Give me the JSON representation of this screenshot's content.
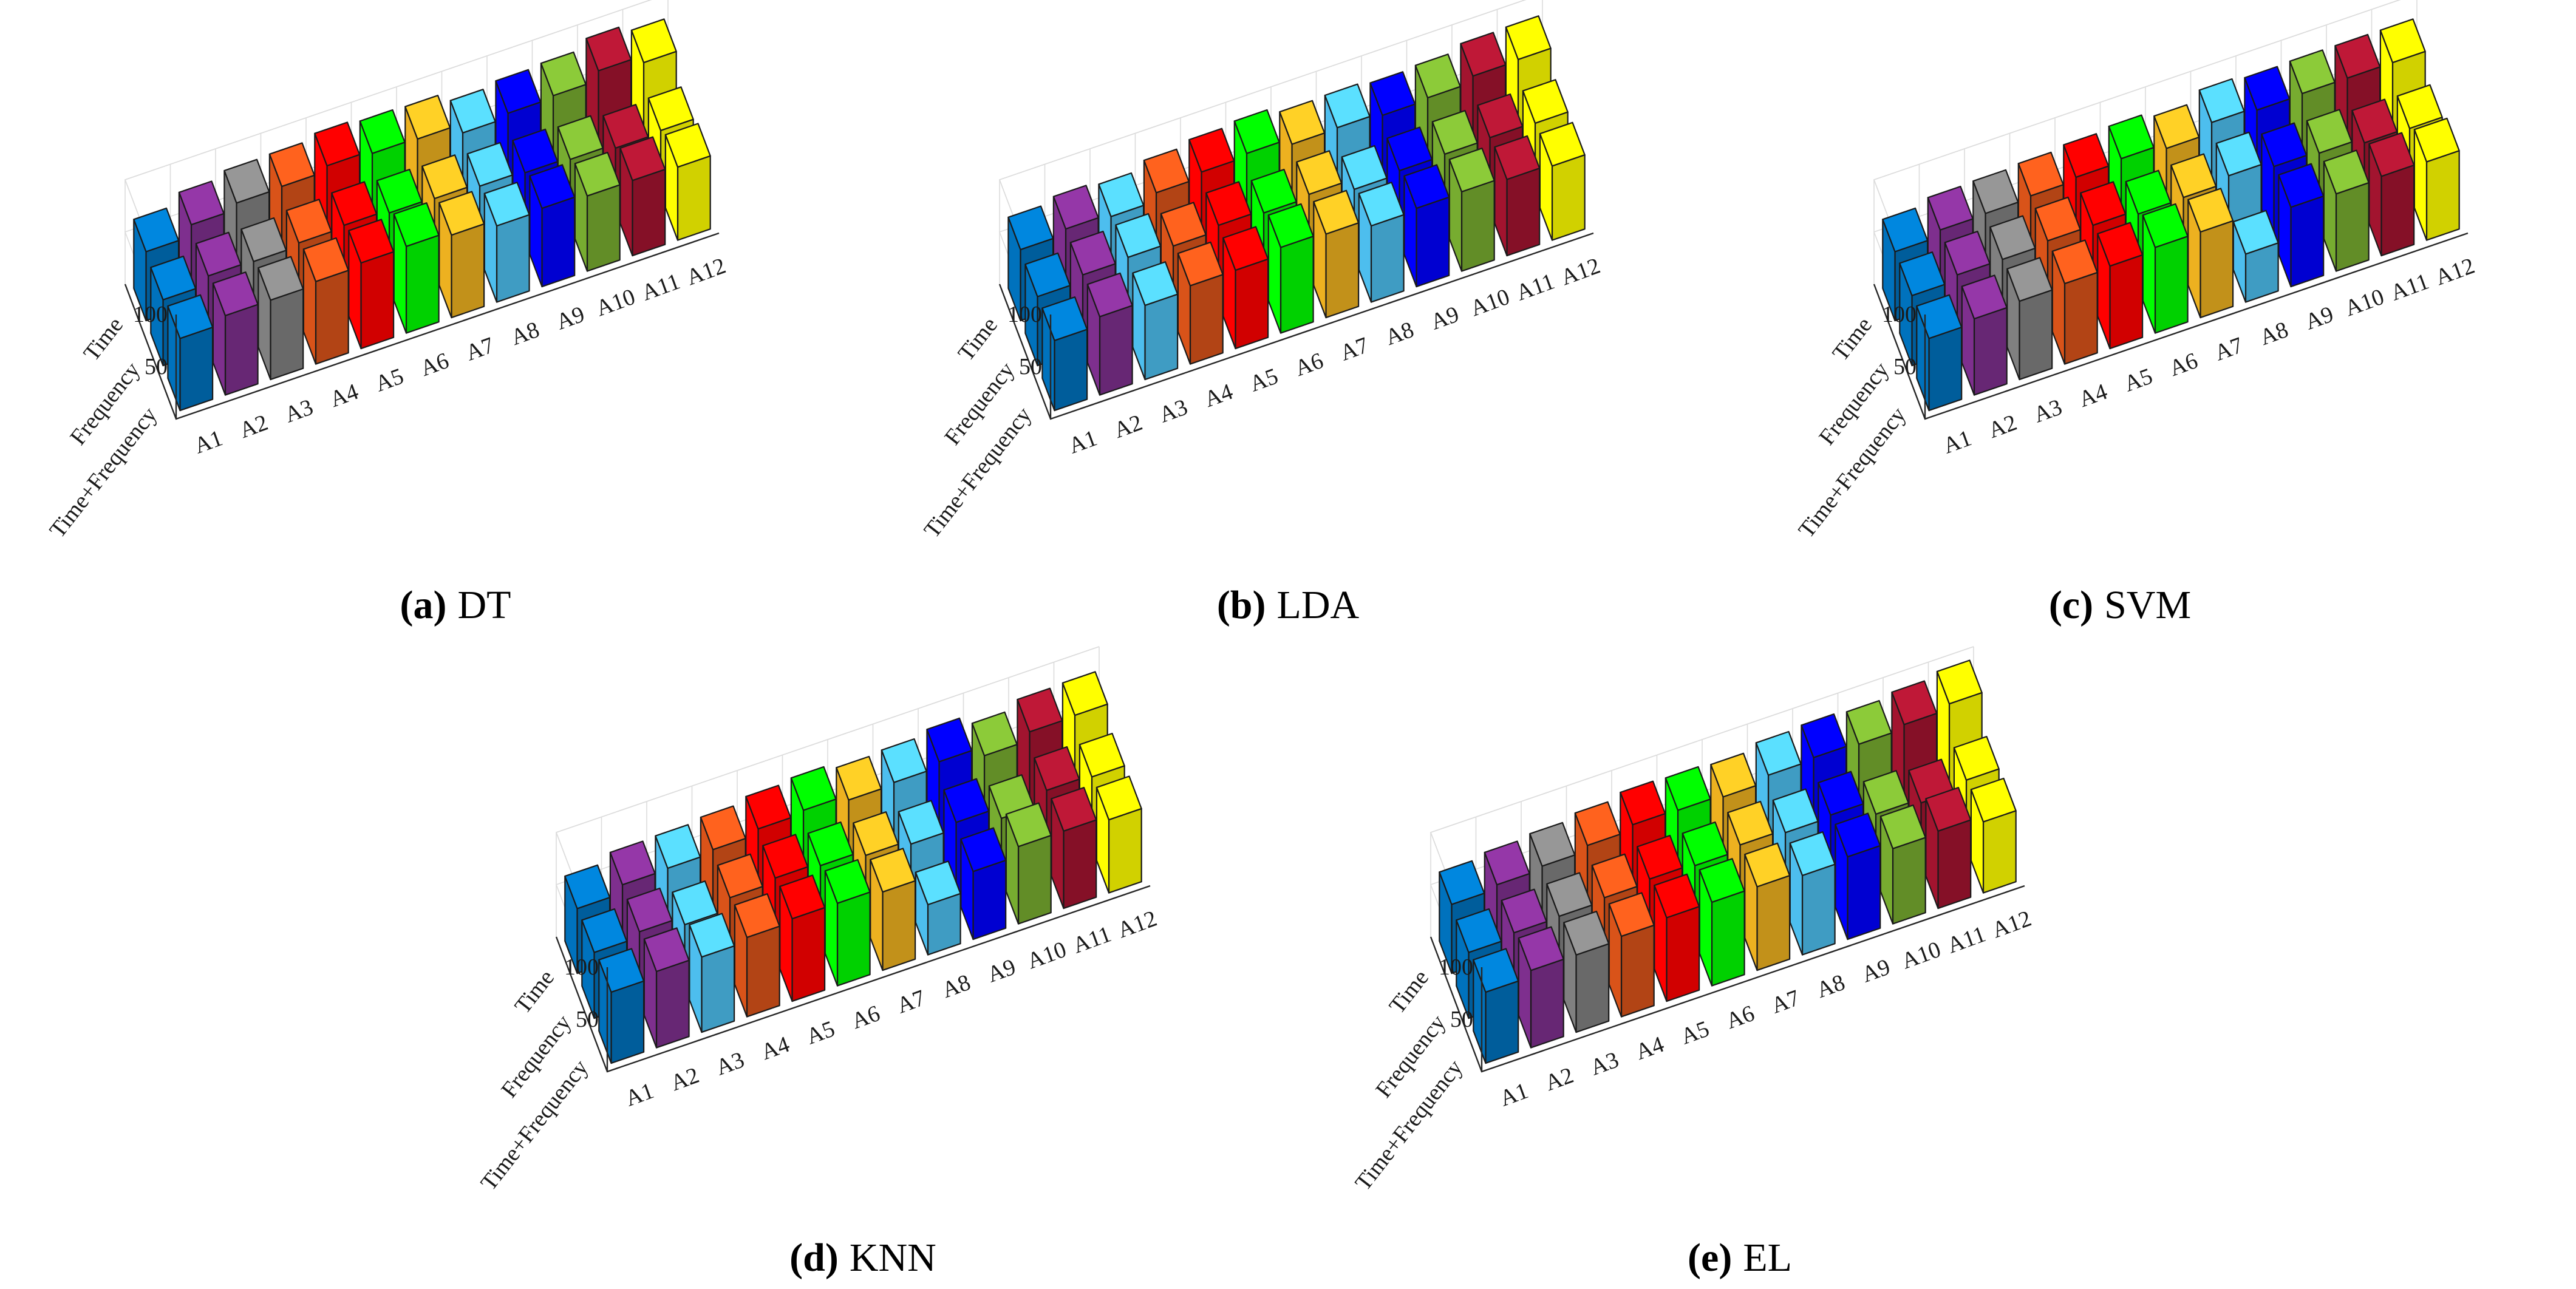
{
  "figure": {
    "subcaptions": [
      {
        "letter": "(a)",
        "name": "DT"
      },
      {
        "letter": "(b)",
        "name": "LDA"
      },
      {
        "letter": "(c)",
        "name": "SVM"
      },
      {
        "letter": "(d)",
        "name": "KNN"
      },
      {
        "letter": "(e)",
        "name": "EL"
      }
    ]
  },
  "chart_data": [
    {
      "type": "bar3d",
      "title": "(a) DT",
      "categories": [
        "A1",
        "A2",
        "A3",
        "A4",
        "A5",
        "A6",
        "A7",
        "A8",
        "A9",
        "A10",
        "A11",
        "A12"
      ],
      "series": [
        {
          "name": "Time",
          "values": [
            66,
            77,
            83,
            84,
            89,
            86,
            85,
            76,
            80,
            82,
            91,
            84
          ]
        },
        {
          "name": "Frequency",
          "values": [
            63,
            71,
            70,
            73,
            75,
            72,
            71,
            68,
            66,
            64,
            60,
            62
          ]
        },
        {
          "name": "Time+Frequency",
          "values": [
            69,
            76,
            76,
            79,
            82,
            83,
            79,
            73,
            75,
            72,
            72,
            70
          ]
        }
      ],
      "zlim": [
        0,
        100
      ],
      "zticks": [
        50,
        100
      ],
      "colors": [
        "#0072bd",
        "#7e2f8e",
        "#808080",
        "#d95319",
        "#ff0000",
        "#00ff00",
        "#edb120",
        "#4dbeee",
        "#0000ff",
        "#77ac30",
        "#a2142f",
        "#ffff00"
      ]
    },
    {
      "type": "bar3d",
      "title": "(b) LDA",
      "categories": [
        "A1",
        "A2",
        "A3",
        "A4",
        "A5",
        "A6",
        "A7",
        "A8",
        "A9",
        "A10",
        "A11",
        "A12"
      ],
      "series": [
        {
          "name": "Time",
          "values": [
            68,
            73,
            70,
            78,
            83,
            86,
            80,
            81,
            78,
            80,
            86,
            87
          ]
        },
        {
          "name": "Frequency",
          "values": [
            66,
            72,
            74,
            70,
            75,
            72,
            75,
            65,
            68,
            69,
            70,
            69
          ]
        },
        {
          "name": "Time+Frequency",
          "values": [
            67,
            75,
            71,
            75,
            75,
            82,
            80,
            73,
            75,
            76,
            73,
            71
          ]
        }
      ],
      "zlim": [
        0,
        100
      ],
      "zticks": [
        50,
        100
      ],
      "colors": [
        "#0072bd",
        "#7e2f8e",
        "#4dbeee",
        "#d95319",
        "#ff0000",
        "#00ff00",
        "#edb120",
        "#4dbeee",
        "#0000ff",
        "#77ac30",
        "#a2142f",
        "#ffff00"
      ]
    },
    {
      "type": "bar3d",
      "title": "(c) SVM",
      "categories": [
        "A1",
        "A2",
        "A3",
        "A4",
        "A5",
        "A6",
        "A7",
        "A8",
        "A9",
        "A10",
        "A11",
        "A12"
      ],
      "series": [
        {
          "name": "Time",
          "values": [
            66,
            72,
            73,
            75,
            78,
            81,
            76,
            86,
            83,
            84,
            84,
            84
          ]
        },
        {
          "name": "Frequency",
          "values": [
            67,
            72,
            72,
            75,
            75,
            71,
            72,
            78,
            72,
            70,
            65,
            64
          ]
        },
        {
          "name": "Time+Frequency",
          "values": [
            69,
            73,
            75,
            77,
            79,
            82,
            82,
            46,
            76,
            74,
            76,
            75
          ]
        }
      ],
      "zlim": [
        0,
        100
      ],
      "zticks": [
        50,
        100
      ],
      "colors": [
        "#0072bd",
        "#7e2f8e",
        "#808080",
        "#d95319",
        "#ff0000",
        "#00ff00",
        "#edb120",
        "#4dbeee",
        "#0000ff",
        "#77ac30",
        "#a2142f",
        "#ffff00"
      ]
    },
    {
      "type": "bar3d",
      "title": "(d) KNN",
      "categories": [
        "A1",
        "A2",
        "A3",
        "A4",
        "A5",
        "A6",
        "A7",
        "A8",
        "A9",
        "A10",
        "A11",
        "A12"
      ],
      "series": [
        {
          "name": "Time",
          "values": [
            62,
            70,
            71,
            74,
            79,
            82,
            77,
            79,
            84,
            75,
            83,
            84
          ]
        },
        {
          "name": "Frequency",
          "values": [
            63,
            68,
            60,
            71,
            75,
            72,
            67,
            63,
            69,
            58,
            70,
            68
          ]
        },
        {
          "name": "Time+Frequency",
          "values": [
            68,
            73,
            72,
            76,
            79,
            79,
            75,
            48,
            65,
            74,
            74,
            70
          ]
        }
      ],
      "zlim": [
        0,
        100
      ],
      "zticks": [
        50,
        100
      ],
      "colors": [
        "#0072bd",
        "#7e2f8e",
        "#4dbeee",
        "#d95319",
        "#ff0000",
        "#00ff00",
        "#edb120",
        "#4dbeee",
        "#0000ff",
        "#77ac30",
        "#a2142f",
        "#ffff00"
      ]
    },
    {
      "type": "bar3d",
      "title": "(e) EL",
      "categories": [
        "A1",
        "A2",
        "A3",
        "A4",
        "A5",
        "A6",
        "A7",
        "A8",
        "A9",
        "A10",
        "A11",
        "A12"
      ],
      "series": [
        {
          "name": "Time",
          "values": [
            66,
            70,
            73,
            78,
            83,
            82,
            80,
            86,
            88,
            86,
            90,
            95
          ]
        },
        {
          "name": "Frequency",
          "values": [
            63,
            67,
            68,
            71,
            74,
            72,
            77,
            74,
            76,
            62,
            58,
            65
          ]
        },
        {
          "name": "Time+Frequency",
          "values": [
            68,
            74,
            74,
            77,
            80,
            80,
            80,
            76,
            79,
            72,
            74,
            68
          ]
        }
      ],
      "zlim": [
        0,
        100
      ],
      "zticks": [
        50,
        100
      ],
      "colors": [
        "#0072bd",
        "#7e2f8e",
        "#808080",
        "#d95319",
        "#ff0000",
        "#00ff00",
        "#edb120",
        "#4dbeee",
        "#0000ff",
        "#77ac30",
        "#a2142f",
        "#ffff00"
      ]
    }
  ]
}
